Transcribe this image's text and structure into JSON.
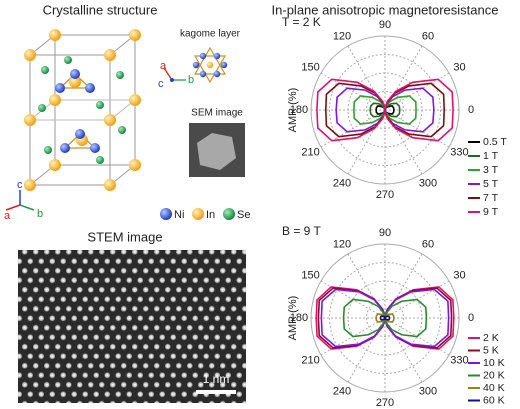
{
  "panels": {
    "structure": {
      "title": "Crystalline structure",
      "kagome_label": "kagome layer",
      "kagome_axes": [
        "a",
        "c",
        "b"
      ],
      "sem_label": "SEM image",
      "axes": [
        "a",
        "b",
        "c"
      ],
      "legend": [
        "Ni",
        "In",
        "Se"
      ]
    },
    "stem": {
      "title": "STEM image",
      "scale_bar": "1 nm"
    },
    "amr_title": "In-plane anisotropic magnetoresistance"
  },
  "chart_data": [
    {
      "type": "polar",
      "annotation": "T = 2 K",
      "ylabel": "AMR (%)",
      "legend": "right",
      "theta": [
        0,
        15,
        30,
        45,
        60,
        75,
        90,
        105,
        120,
        135,
        150,
        165,
        180,
        195,
        210,
        225,
        240,
        255,
        270,
        285,
        300,
        315,
        330,
        345
      ],
      "thetaticks": [
        0,
        30,
        60,
        90,
        120,
        150,
        180,
        210,
        240,
        270,
        300,
        330
      ],
      "rlim": [
        0,
        1
      ],
      "rticks": [
        0.25,
        0.5,
        0.75,
        1
      ],
      "series": [
        {
          "name": "0.5 T",
          "color": "#000000",
          "values": [
            0.12,
            0.12,
            0.11,
            0.07,
            0.04,
            0.02,
            0,
            0.02,
            0.04,
            0.07,
            0.11,
            0.12,
            0.12,
            0.12,
            0.11,
            0.07,
            0.04,
            0.02,
            0,
            0.02,
            0.04,
            0.07,
            0.11,
            0.12
          ]
        },
        {
          "name": "1 T",
          "color": "#1f6b1f",
          "values": [
            0.2,
            0.2,
            0.18,
            0.12,
            0.06,
            0.03,
            0,
            0.03,
            0.06,
            0.12,
            0.18,
            0.2,
            0.2,
            0.2,
            0.18,
            0.12,
            0.06,
            0.03,
            0,
            0.03,
            0.06,
            0.12,
            0.18,
            0.2
          ]
        },
        {
          "name": "3 T",
          "color": "#33a02c",
          "values": [
            0.42,
            0.43,
            0.38,
            0.24,
            0.13,
            0.05,
            0.01,
            0.05,
            0.13,
            0.24,
            0.38,
            0.43,
            0.42,
            0.43,
            0.38,
            0.24,
            0.13,
            0.05,
            0.01,
            0.05,
            0.13,
            0.24,
            0.38,
            0.43
          ]
        },
        {
          "name": "5 T",
          "color": "#7b16e6",
          "values": [
            0.66,
            0.67,
            0.59,
            0.38,
            0.21,
            0.09,
            0.01,
            0.09,
            0.21,
            0.38,
            0.59,
            0.67,
            0.66,
            0.67,
            0.59,
            0.38,
            0.21,
            0.09,
            0.01,
            0.09,
            0.21,
            0.38,
            0.59,
            0.67
          ]
        },
        {
          "name": "7 T",
          "color": "#7a1010",
          "values": [
            0.8,
            0.82,
            0.72,
            0.46,
            0.26,
            0.1,
            0.02,
            0.1,
            0.26,
            0.46,
            0.72,
            0.82,
            0.8,
            0.82,
            0.72,
            0.46,
            0.26,
            0.1,
            0.02,
            0.1,
            0.26,
            0.46,
            0.72,
            0.82
          ]
        },
        {
          "name": "9 T",
          "color": "#e0106e",
          "values": [
            0.92,
            0.94,
            0.83,
            0.53,
            0.29,
            0.12,
            0.02,
            0.12,
            0.29,
            0.53,
            0.83,
            0.94,
            0.92,
            0.94,
            0.83,
            0.53,
            0.29,
            0.12,
            0.02,
            0.12,
            0.29,
            0.53,
            0.83,
            0.94
          ]
        }
      ]
    },
    {
      "type": "polar",
      "annotation": "B = 9 T",
      "ylabel": "AMR (%)",
      "legend": "right",
      "theta": [
        0,
        15,
        30,
        45,
        60,
        75,
        90,
        105,
        120,
        135,
        150,
        165,
        180,
        195,
        210,
        225,
        240,
        255,
        270,
        285,
        300,
        315,
        330,
        345
      ],
      "thetaticks": [
        0,
        30,
        60,
        90,
        120,
        150,
        180,
        210,
        240,
        270,
        300,
        330
      ],
      "rlim": [
        0,
        1
      ],
      "rticks": [
        0.25,
        0.5,
        0.75,
        1
      ],
      "series": [
        {
          "name": "2 K",
          "color": "#e0106e",
          "values": [
            0.93,
            0.95,
            0.84,
            0.54,
            0.3,
            0.12,
            0.02,
            0.12,
            0.3,
            0.54,
            0.84,
            0.95,
            0.93,
            0.95,
            0.84,
            0.54,
            0.3,
            0.12,
            0.02,
            0.12,
            0.3,
            0.54,
            0.84,
            0.95
          ]
        },
        {
          "name": "5 K",
          "color": "#8b0a2a",
          "values": [
            0.9,
            0.92,
            0.81,
            0.52,
            0.29,
            0.12,
            0.02,
            0.12,
            0.29,
            0.52,
            0.81,
            0.92,
            0.9,
            0.92,
            0.81,
            0.52,
            0.29,
            0.12,
            0.02,
            0.12,
            0.29,
            0.52,
            0.81,
            0.92
          ]
        },
        {
          "name": "10 K",
          "color": "#7b16e6",
          "values": [
            0.86,
            0.88,
            0.77,
            0.5,
            0.28,
            0.11,
            0.02,
            0.11,
            0.28,
            0.5,
            0.77,
            0.88,
            0.86,
            0.88,
            0.77,
            0.5,
            0.28,
            0.11,
            0.02,
            0.11,
            0.28,
            0.5,
            0.77,
            0.88
          ]
        },
        {
          "name": "20 K",
          "color": "#2a8a2a",
          "values": [
            0.56,
            0.57,
            0.5,
            0.32,
            0.18,
            0.07,
            0.01,
            0.07,
            0.18,
            0.32,
            0.5,
            0.57,
            0.56,
            0.57,
            0.5,
            0.32,
            0.18,
            0.07,
            0.01,
            0.07,
            0.18,
            0.32,
            0.5,
            0.57
          ]
        },
        {
          "name": "40 K",
          "color": "#a08010",
          "values": [
            0.12,
            0.12,
            0.11,
            0.07,
            0.04,
            0.02,
            0,
            0.02,
            0.04,
            0.07,
            0.11,
            0.12,
            0.12,
            0.12,
            0.11,
            0.07,
            0.04,
            0.02,
            0,
            0.02,
            0.04,
            0.07,
            0.11,
            0.12
          ]
        },
        {
          "name": "60 K",
          "color": "#101080",
          "values": [
            0.06,
            0.06,
            0.05,
            0.03,
            0.02,
            0.01,
            0,
            0.01,
            0.02,
            0.03,
            0.05,
            0.06,
            0.06,
            0.06,
            0.05,
            0.03,
            0.02,
            0.01,
            0,
            0.01,
            0.02,
            0.03,
            0.05,
            0.06
          ]
        }
      ]
    }
  ]
}
